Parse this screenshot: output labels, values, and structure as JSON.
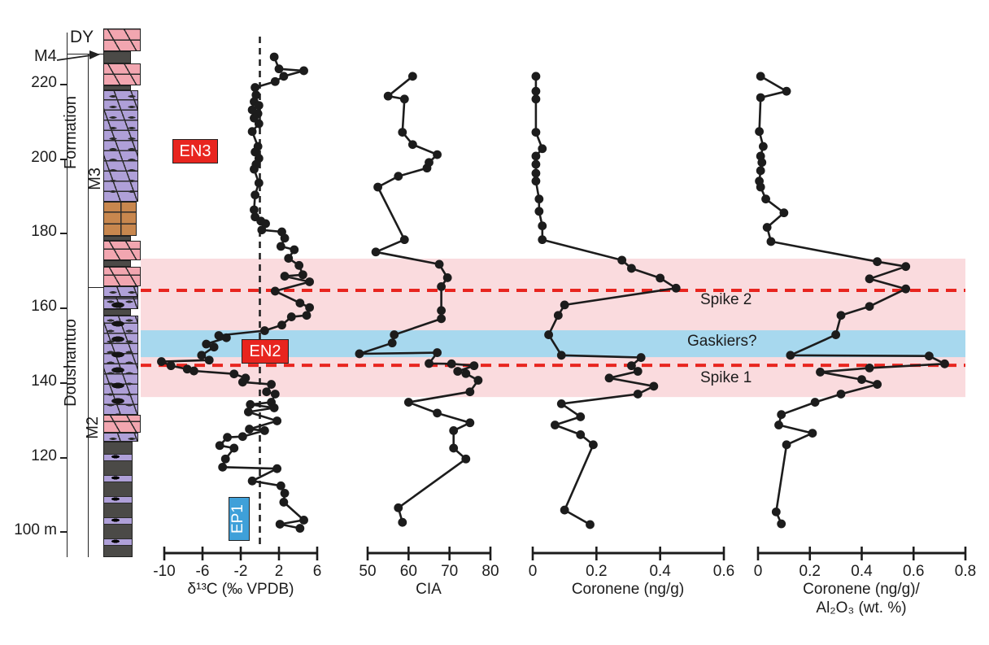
{
  "figure": {
    "background": "#ffffff"
  },
  "colors": {
    "limestone_pink": "#F2A6B0",
    "dolomite_purple": "#AFA0D8",
    "brown_dolomite": "#C8874E",
    "shale_gray": "#4B4A47",
    "band_pink": "#FADBDE",
    "band_blue": "#A7D8EE",
    "spike_red": "#E8251F",
    "label_red_bg": "#E8251F",
    "label_blue_bg": "#3FA0D9",
    "data_black": "#1C1C1C"
  },
  "strat_column": {
    "overlying_formation": "DY",
    "formation_word": "Formation",
    "formation_name": "Doushantuo",
    "members": {
      "m4": "M4",
      "m3": "M3",
      "m2": "M2"
    },
    "depth_ticks": [
      {
        "label": "220",
        "depth": 220
      },
      {
        "label": "200",
        "depth": 200
      },
      {
        "label": "180",
        "depth": 180
      },
      {
        "label": "160",
        "depth": 160
      },
      {
        "label": "140",
        "depth": 140
      },
      {
        "label": "120",
        "depth": 120
      },
      {
        "label": "100 m",
        "depth": 100
      }
    ],
    "lithology_units": [
      {
        "lith": "limestone",
        "top_depth": 234.8,
        "base_depth": 228.7
      },
      {
        "lith": "gray",
        "top_depth": 228.7,
        "base_depth": 225.5
      },
      {
        "lith": "limestone",
        "top_depth": 225.5,
        "base_depth": 219.6
      },
      {
        "lith": "gray",
        "top_depth": 219.6,
        "base_depth": 218.3
      },
      {
        "lith": "dolomite",
        "top_depth": 218.3,
        "base_depth": 188.4
      },
      {
        "lith": "brown_dolomite",
        "top_depth": 188.4,
        "base_depth": 179.2
      },
      {
        "lith": "gray",
        "top_depth": 179.2,
        "base_depth": 177.9
      },
      {
        "lith": "limestone",
        "top_depth": 177.9,
        "base_depth": 172.7
      },
      {
        "lith": "gray",
        "top_depth": 172.7,
        "base_depth": 171.0
      },
      {
        "lith": "limestone",
        "top_depth": 171.0,
        "base_depth": 165.7
      },
      {
        "lith": "dolomite",
        "top_depth": 165.7,
        "base_depth": 162.9
      },
      {
        "lith": "dolomite_nodules",
        "top_depth": 162.9,
        "base_depth": 159.6
      },
      {
        "lith": "gray",
        "top_depth": 159.6,
        "base_depth": 157.9
      },
      {
        "lith": "dolomite_nodules",
        "top_depth": 157.9,
        "base_depth": 131.2
      },
      {
        "lith": "limestone",
        "top_depth": 131.2,
        "base_depth": 126.4
      },
      {
        "lith": "dolomite",
        "top_depth": 126.4,
        "base_depth": 124.0
      },
      {
        "lith": "shale_interbedded",
        "top_depth": 124.0,
        "base_depth": 93.0
      }
    ]
  },
  "bands": {
    "pink_top_depth": 173.1,
    "pink_base_depth": 136.0,
    "blue_top_depth": 153.9,
    "blue_base_depth": 146.7,
    "spike2_line_depth": 164.6,
    "spike1_line_depth": 144.5
  },
  "annotations": {
    "en3": "EN3",
    "en2": "EN2",
    "ep1": "EP1",
    "spike2": "Spike 2",
    "gaskiers": "Gaskiers?",
    "spike1": "Spike 1"
  },
  "chart_data": {
    "type": "line",
    "orientation": "depth-vertical",
    "depth_axis": {
      "unit": "m",
      "min": 93,
      "max": 235,
      "ticks": [
        220,
        200,
        180,
        160,
        140,
        120,
        100
      ]
    },
    "panels": [
      {
        "key": "d13c",
        "xlabel": "δ¹³C (‰ VPDB)",
        "xlim": [
          -10,
          6
        ],
        "xticks": [
          -10,
          -6,
          -2,
          2,
          6
        ],
        "xtick_labels": [
          "-10",
          "-6",
          "-2",
          "2",
          "6"
        ],
        "zero_reference_line": 0,
        "series": [
          [
            227.2,
            1.5
          ],
          [
            224.0,
            2.0
          ],
          [
            223.5,
            4.6
          ],
          [
            222.0,
            2.5
          ],
          [
            220.6,
            1.6
          ],
          [
            219.0,
            -0.5
          ],
          [
            217.0,
            -0.4
          ],
          [
            215.2,
            -0.6
          ],
          [
            214.2,
            -0.1
          ],
          [
            213.0,
            -0.8
          ],
          [
            212.0,
            -0.2
          ],
          [
            210.8,
            -0.6
          ],
          [
            209.3,
            -0.1
          ],
          [
            207.2,
            -0.8
          ],
          [
            203.2,
            -0.2
          ],
          [
            201.7,
            -0.5
          ],
          [
            200.0,
            -0.1
          ],
          [
            198.4,
            -0.4
          ],
          [
            197.1,
            -0.6
          ],
          [
            193.4,
            -0.1
          ],
          [
            190.2,
            -0.5
          ],
          [
            186.2,
            -0.6
          ],
          [
            184.3,
            -0.5
          ],
          [
            183.2,
            0.1
          ],
          [
            182.5,
            0.6
          ],
          [
            180.8,
            0.2
          ],
          [
            180.3,
            2.3
          ],
          [
            178.6,
            2.6
          ],
          [
            176.4,
            2.2
          ],
          [
            175.5,
            3.6
          ],
          [
            173.2,
            3.0
          ],
          [
            171.3,
            4.1
          ],
          [
            168.8,
            4.5
          ],
          [
            168.4,
            2.6
          ],
          [
            166.9,
            5.2
          ],
          [
            164.4,
            1.6
          ],
          [
            161.2,
            4.2
          ],
          [
            160.0,
            5.2
          ],
          [
            157.9,
            4.9
          ],
          [
            157.5,
            3.3
          ],
          [
            155.3,
            2.3
          ],
          [
            153.8,
            0.5
          ],
          [
            152.5,
            -4.3
          ],
          [
            151.9,
            -3.5
          ],
          [
            150.2,
            -5.6
          ],
          [
            149.4,
            -4.8
          ],
          [
            147.2,
            -6.1
          ],
          [
            145.9,
            -5.3
          ],
          [
            145.5,
            -10.3
          ],
          [
            144.4,
            -9.3
          ],
          [
            143.5,
            -7.6
          ],
          [
            143.0,
            -6.9
          ],
          [
            142.2,
            -2.7
          ],
          [
            141.1,
            -1.5
          ],
          [
            140.0,
            -1.8
          ],
          [
            139.4,
            1.2
          ],
          [
            137.4,
            0.7
          ],
          [
            136.8,
            1.6
          ],
          [
            134.6,
            1.2
          ],
          [
            134.0,
            -1.0
          ],
          [
            133.1,
            1.5
          ],
          [
            132.0,
            -1.2
          ],
          [
            129.6,
            1.8
          ],
          [
            127.4,
            -1.1
          ],
          [
            127.0,
            0.5
          ],
          [
            125.4,
            -1.8
          ],
          [
            125.2,
            -3.4
          ],
          [
            123.0,
            -4.2
          ],
          [
            122.3,
            -2.7
          ],
          [
            119.4,
            -3.6
          ],
          [
            117.2,
            -3.9
          ],
          [
            116.8,
            1.8
          ],
          [
            113.5,
            -0.8
          ],
          [
            112.2,
            2.2
          ],
          [
            110.2,
            2.6
          ],
          [
            107.8,
            2.5
          ],
          [
            103.0,
            4.6
          ],
          [
            101.9,
            2.1
          ],
          [
            100.8,
            4.2
          ]
        ]
      },
      {
        "key": "cia",
        "xlabel": "CIA",
        "xlim": [
          50,
          80
        ],
        "xticks": [
          50,
          60,
          70,
          80
        ],
        "xtick_labels": [
          "50",
          "60",
          "70",
          "80"
        ],
        "series": [
          [
            222.0,
            61
          ],
          [
            216.7,
            55
          ],
          [
            215.9,
            59
          ],
          [
            207.0,
            58.5
          ],
          [
            203.7,
            61
          ],
          [
            201.0,
            67
          ],
          [
            198.9,
            65
          ],
          [
            197.4,
            64.5
          ],
          [
            195.2,
            57.5
          ],
          [
            192.3,
            52.5
          ],
          [
            178.2,
            59
          ],
          [
            174.9,
            52
          ],
          [
            171.6,
            67.5
          ],
          [
            168.0,
            69.5
          ],
          [
            165.6,
            68
          ],
          [
            159.2,
            68
          ],
          [
            157.0,
            68
          ],
          [
            152.7,
            56.5
          ],
          [
            150.5,
            56
          ],
          [
            147.6,
            48
          ],
          [
            147.9,
            67
          ],
          [
            145.0,
            65
          ],
          [
            144.9,
            70.5
          ],
          [
            144.4,
            76
          ],
          [
            142.9,
            72
          ],
          [
            142.3,
            74
          ],
          [
            140.5,
            77
          ],
          [
            137.4,
            75
          ],
          [
            134.6,
            60
          ],
          [
            131.7,
            67
          ],
          [
            129.1,
            75
          ],
          [
            127.0,
            71
          ],
          [
            122.3,
            71
          ],
          [
            119.4,
            74
          ],
          [
            106.3,
            57.5
          ],
          [
            102.4,
            58.5
          ]
        ]
      },
      {
        "key": "coronene",
        "xlabel": "Coronene (ng/g)",
        "xlim": [
          0,
          0.6
        ],
        "xticks": [
          0,
          0.2,
          0.4,
          0.6
        ],
        "xtick_labels": [
          "0",
          "0.2",
          "0.4",
          "0.6"
        ],
        "series": [
          [
            222.0,
            0.01
          ],
          [
            218.0,
            0.01
          ],
          [
            215.9,
            0.01
          ],
          [
            207.0,
            0.01
          ],
          [
            202.6,
            0.03
          ],
          [
            200.6,
            0.01
          ],
          [
            198.4,
            0.01
          ],
          [
            196.0,
            0.01
          ],
          [
            193.9,
            0.01
          ],
          [
            189.1,
            0.02
          ],
          [
            185.8,
            0.02
          ],
          [
            181.9,
            0.03
          ],
          [
            178.2,
            0.03
          ],
          [
            172.7,
            0.28
          ],
          [
            170.5,
            0.31
          ],
          [
            167.9,
            0.4
          ],
          [
            165.2,
            0.45
          ],
          [
            160.7,
            0.1
          ],
          [
            157.9,
            0.08
          ],
          [
            152.7,
            0.05
          ],
          [
            147.2,
            0.09
          ],
          [
            146.6,
            0.34
          ],
          [
            144.4,
            0.31
          ],
          [
            142.9,
            0.33
          ],
          [
            141.1,
            0.24
          ],
          [
            138.9,
            0.38
          ],
          [
            136.8,
            0.33
          ],
          [
            134.2,
            0.09
          ],
          [
            130.7,
            0.15
          ],
          [
            128.5,
            0.07
          ],
          [
            125.9,
            0.15
          ],
          [
            123.2,
            0.19
          ],
          [
            105.7,
            0.1
          ],
          [
            101.8,
            0.18
          ]
        ]
      },
      {
        "key": "coronene_al2o3",
        "xlabel": "Coronene (ng/g)/",
        "xlabel2": "Al₂O₃ (wt. %)",
        "xlim": [
          0,
          0.8
        ],
        "xticks": [
          0,
          0.2,
          0.4,
          0.6,
          0.8
        ],
        "xtick_labels": [
          "0",
          "0.2",
          "0.4",
          "0.6",
          "0.8"
        ],
        "series": [
          [
            222.0,
            0.01
          ],
          [
            218.0,
            0.11
          ],
          [
            216.3,
            0.01
          ],
          [
            207.2,
            0.005
          ],
          [
            203.2,
            0.02
          ],
          [
            200.6,
            0.01
          ],
          [
            198.9,
            0.015
          ],
          [
            196.7,
            0.01
          ],
          [
            193.9,
            0.005
          ],
          [
            192.3,
            0.01
          ],
          [
            189.1,
            0.03
          ],
          [
            185.4,
            0.1
          ],
          [
            181.5,
            0.035
          ],
          [
            177.7,
            0.05
          ],
          [
            172.3,
            0.46
          ],
          [
            171.0,
            0.57
          ],
          [
            167.7,
            0.43
          ],
          [
            165.0,
            0.57
          ],
          [
            160.3,
            0.43
          ],
          [
            157.9,
            0.32
          ],
          [
            152.7,
            0.3
          ],
          [
            147.2,
            0.125
          ],
          [
            147.0,
            0.66
          ],
          [
            144.9,
            0.72
          ],
          [
            143.8,
            0.43
          ],
          [
            142.7,
            0.24
          ],
          [
            140.7,
            0.4
          ],
          [
            139.4,
            0.46
          ],
          [
            136.8,
            0.32
          ],
          [
            134.6,
            0.22
          ],
          [
            131.3,
            0.09
          ],
          [
            128.5,
            0.08
          ],
          [
            126.3,
            0.21
          ],
          [
            123.2,
            0.11
          ],
          [
            105.2,
            0.07
          ],
          [
            102.0,
            0.09
          ]
        ]
      }
    ]
  }
}
